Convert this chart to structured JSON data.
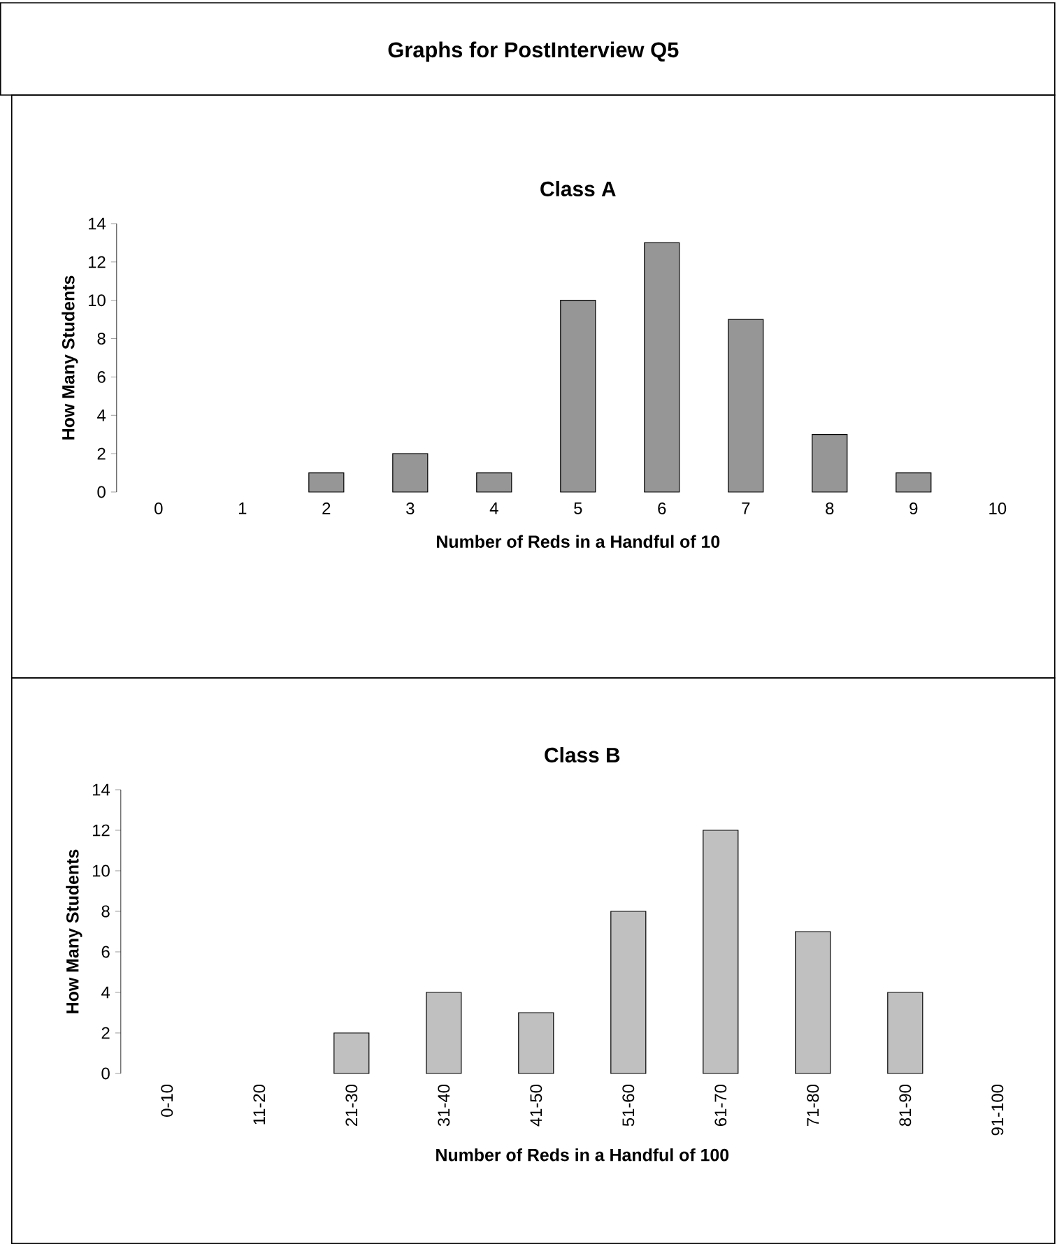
{
  "chart_data": [
    {
      "type": "bar",
      "title": "Graphs for PostInterview Q5",
      "subtitle": "Class A",
      "xlabel": "Number of Reds in a Handful of 10",
      "ylabel": "How Many Students",
      "categories": [
        "0",
        "1",
        "2",
        "3",
        "4",
        "5",
        "6",
        "7",
        "8",
        "9",
        "10"
      ],
      "values": [
        0,
        0,
        1,
        2,
        1,
        10,
        13,
        9,
        3,
        1,
        0
      ],
      "color": "#969696",
      "ylim": [
        0,
        14
      ],
      "yticks": [
        0,
        2,
        4,
        6,
        8,
        10,
        12,
        14
      ]
    },
    {
      "type": "bar",
      "title": "Class B",
      "xlabel": "Number of Reds in a Handful of 100",
      "ylabel": "How Many Students",
      "categories": [
        "0-10",
        "11-20",
        "21-30",
        "31-40",
        "41-50",
        "51-60",
        "61-70",
        "71-80",
        "81-90",
        "91-100"
      ],
      "values": [
        0,
        0,
        2,
        4,
        3,
        8,
        12,
        7,
        4,
        0
      ],
      "color": "#c0c0c0",
      "ylim": [
        0,
        14
      ],
      "yticks": [
        0,
        2,
        4,
        6,
        8,
        10,
        12,
        14
      ]
    }
  ]
}
